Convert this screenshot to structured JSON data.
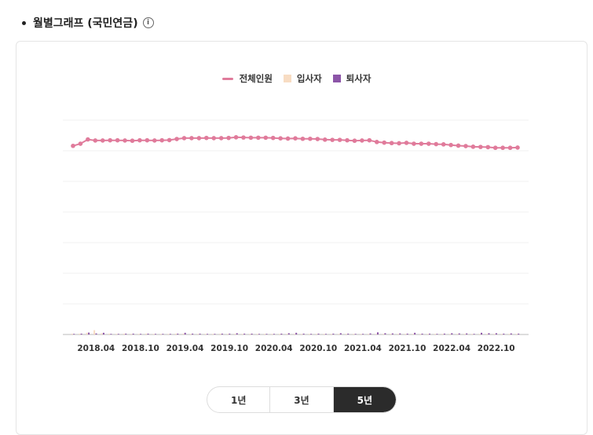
{
  "header": {
    "title": "월별그래프 (국민연금)",
    "info_icon": "info-icon"
  },
  "period_buttons": [
    {
      "label": "1년",
      "active": false
    },
    {
      "label": "3년",
      "active": false
    },
    {
      "label": "5년",
      "active": true
    }
  ],
  "chart_data": {
    "type": "line",
    "x_tick_labels": [
      "2018.04",
      "2018.10",
      "2019.04",
      "2019.10",
      "2020.04",
      "2020.10",
      "2021.04",
      "2021.10",
      "2022.04",
      "2022.10"
    ],
    "legend_position": "top-center",
    "grid": true,
    "series": [
      {
        "name": "전체인원",
        "kind": "line",
        "color": "#e07b9b",
        "values": [
          88,
          89,
          91,
          90.5,
          90.5,
          90.6,
          90.6,
          90.5,
          90.4,
          90.6,
          90.6,
          90.5,
          90.6,
          90.7,
          91.2,
          91.6,
          91.6,
          91.6,
          91.7,
          91.6,
          91.6,
          91.7,
          92,
          91.9,
          91.8,
          91.8,
          91.8,
          91.7,
          91.5,
          91.4,
          91.5,
          91.3,
          91.3,
          91.2,
          90.9,
          90.8,
          90.8,
          90.6,
          90.4,
          90.5,
          90.6,
          89.8,
          89.5,
          89.3,
          89.2,
          89.4,
          89,
          89,
          89,
          88.8,
          88.7,
          88.4,
          88.1,
          87.9,
          87.6,
          87.5,
          87.4,
          87.1,
          87.1,
          87.1,
          87.2
        ]
      },
      {
        "name": "입사자",
        "kind": "bar",
        "color": "#f8dcc3",
        "values": [
          0.4,
          0.4,
          0.8,
          2,
          0.6,
          0.4,
          0.3,
          0.4,
          0.3,
          0.3,
          0.4,
          0.3,
          0.3,
          0.3,
          0.4,
          0.4,
          0.3,
          0.3,
          0.3,
          0.3,
          0.4,
          0.3,
          0.3,
          0.3,
          0.3,
          0.3,
          0.3,
          0.3,
          0.3,
          0.3,
          0.3,
          0.3,
          0.3,
          0.3,
          0.3,
          0.3,
          0.3,
          0.3,
          0.3,
          0.3,
          0.3,
          0.3,
          0.3,
          0.3,
          0.3,
          0.3,
          0.3,
          0.3,
          0.3,
          0.3,
          0.3,
          0.3,
          0.3,
          0.3,
          0.3,
          0.3,
          0.3,
          0.3,
          0.3,
          0.3,
          0.3
        ]
      },
      {
        "name": "퇴사자",
        "kind": "bar",
        "color": "#8c55a8",
        "values": [
          0.3,
          0.4,
          0.9,
          0.5,
          0.8,
          0.3,
          0.3,
          0.4,
          0.4,
          0.3,
          0.4,
          0.3,
          0.3,
          0.3,
          0.4,
          0.8,
          0.4,
          0.4,
          0.3,
          0.3,
          0.4,
          0.4,
          0.6,
          0.4,
          0.4,
          0.3,
          0.3,
          0.3,
          0.4,
          0.6,
          0.8,
          0.4,
          0.3,
          0.4,
          0.3,
          0.4,
          0.6,
          0.4,
          0.3,
          0.3,
          0.5,
          1,
          0.6,
          0.5,
          0.5,
          0.4,
          0.8,
          0.4,
          0.4,
          0.3,
          0.4,
          0.6,
          0.5,
          0.5,
          0.3,
          0.8,
          0.6,
          0.6,
          0.4,
          0.5,
          0.4
        ]
      }
    ],
    "ylim": [
      0,
      100
    ]
  }
}
